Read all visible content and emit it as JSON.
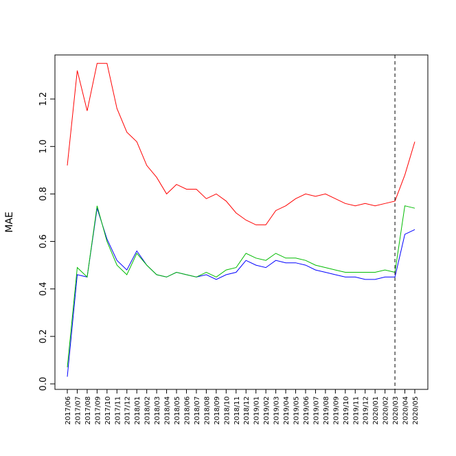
{
  "chart_data": {
    "type": "line",
    "title": "",
    "xlabel": "",
    "ylabel": "MAE",
    "ylim": [
      0.0,
      1.4
    ],
    "yticks": [
      "0.0",
      "0.2",
      "0.4",
      "0.6",
      "0.8",
      "1.0",
      "1.2"
    ],
    "grid": false,
    "legend": "none",
    "categories": [
      "2017/06",
      "2017/07",
      "2017/08",
      "2017/09",
      "2017/10",
      "2017/11",
      "2017/12",
      "2018/01",
      "2018/02",
      "2018/03",
      "2018/04",
      "2018/05",
      "2018/06",
      "2018/07",
      "2018/08",
      "2018/09",
      "2018/10",
      "2018/11",
      "2018/12",
      "2019/01",
      "2019/02",
      "2019/03",
      "2019/04",
      "2019/05",
      "2019/06",
      "2019/07",
      "2019/08",
      "2019/09",
      "2019/10",
      "2019/11",
      "2019/12",
      "2020/01",
      "2020/02",
      "2020/03",
      "2020/04",
      "2020/05"
    ],
    "vline_category": "2020/03",
    "series": [
      {
        "color": "#ff0000",
        "values": [
          0.92,
          1.32,
          1.15,
          1.35,
          1.35,
          1.16,
          1.06,
          1.02,
          0.92,
          0.87,
          0.8,
          0.84,
          0.82,
          0.82,
          0.78,
          0.8,
          0.77,
          0.72,
          0.69,
          0.67,
          0.67,
          0.73,
          0.75,
          0.78,
          0.8,
          0.79,
          0.8,
          0.78,
          0.76,
          0.75,
          0.76,
          0.75,
          0.76,
          0.77,
          0.88,
          1.02
        ]
      },
      {
        "color": "#0000ff",
        "values": [
          0.03,
          0.46,
          0.45,
          0.74,
          0.61,
          0.52,
          0.48,
          0.56,
          0.5,
          0.46,
          0.45,
          0.47,
          0.46,
          0.45,
          0.46,
          0.44,
          0.46,
          0.47,
          0.52,
          0.5,
          0.49,
          0.52,
          0.51,
          0.51,
          0.5,
          0.48,
          0.47,
          0.46,
          0.45,
          0.45,
          0.44,
          0.44,
          0.45,
          0.45,
          0.63,
          0.65
        ]
      },
      {
        "color": "#00bb00",
        "values": [
          0.07,
          0.49,
          0.45,
          0.75,
          0.6,
          0.5,
          0.46,
          0.55,
          0.5,
          0.46,
          0.45,
          0.47,
          0.46,
          0.45,
          0.47,
          0.45,
          0.48,
          0.49,
          0.55,
          0.53,
          0.52,
          0.55,
          0.53,
          0.53,
          0.52,
          0.5,
          0.49,
          0.48,
          0.47,
          0.47,
          0.47,
          0.47,
          0.48,
          0.47,
          0.75,
          0.74
        ]
      }
    ]
  }
}
